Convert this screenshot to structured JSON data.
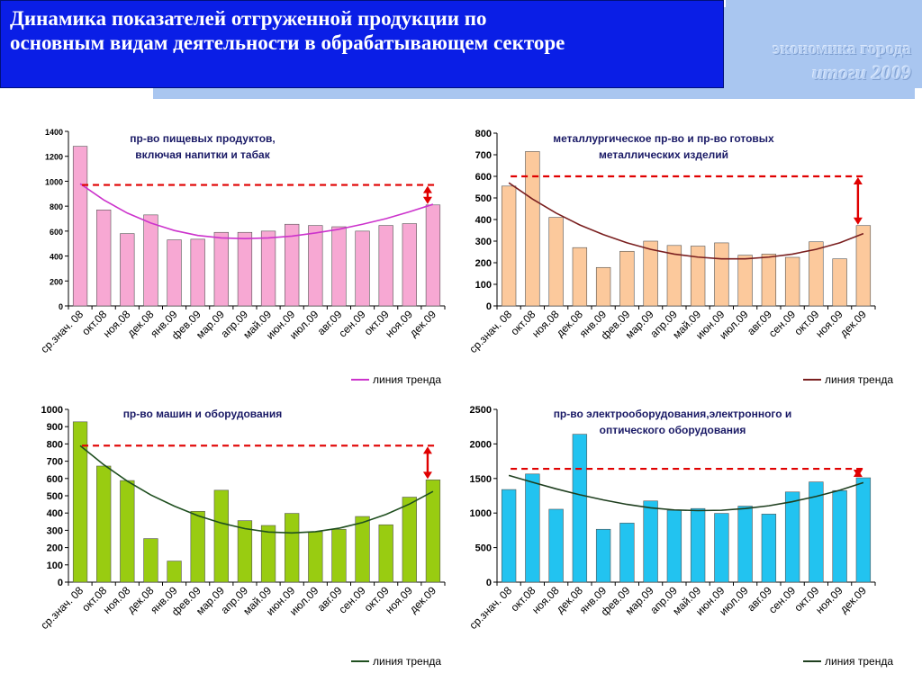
{
  "header": {
    "title_line1": "Динамика показателей отгруженной продукции по",
    "title_line2": "основным видам деятельности в обрабатывающем секторе",
    "logo_line1": "экономика города",
    "logo_line2": "итоги  2009"
  },
  "chart_data": [
    {
      "type": "bar",
      "title": "пр-во пищевых продуктов,\nвключая напитки и табак",
      "categories": [
        "ср.знач. 08",
        "окт.08",
        "ноя.08",
        "дек.08",
        "янв.09",
        "фев.09",
        "мар.09",
        "апр.09",
        "май.09",
        "июн.09",
        "июл.09",
        "авг.09",
        "сен.09",
        "окт.09",
        "ноя.09",
        "дек.09"
      ],
      "values": [
        1280,
        770,
        580,
        730,
        530,
        535,
        590,
        590,
        600,
        655,
        645,
        635,
        600,
        645,
        660,
        810
      ],
      "ylim": [
        0,
        1400
      ],
      "ticks": [
        0,
        200,
        400,
        600,
        800,
        1000,
        1200,
        1400
      ],
      "bar_color": "#f7a8d3",
      "trend_color": "#cc33cc",
      "trend_values": [
        980,
        850,
        745,
        665,
        605,
        565,
        545,
        540,
        545,
        560,
        585,
        615,
        655,
        700,
        755,
        815
      ],
      "dashed_level": 970,
      "legend": "линия тренда",
      "tick_weight": "bold"
    },
    {
      "type": "bar",
      "title": "металлургическое пр-во и пр-во готовых\nметаллических изделий",
      "categories": [
        "ср.знач. 08",
        "окт.08",
        "ноя.08",
        "дек.08",
        "янв.09",
        "фев.09",
        "мар.09",
        "апр.09",
        "май.09",
        "июн.09",
        "июл.09",
        "авг.09",
        "сен.09",
        "окт.09",
        "ноя.09",
        "дек.09"
      ],
      "values": [
        555,
        715,
        410,
        270,
        178,
        253,
        300,
        280,
        277,
        292,
        235,
        240,
        225,
        297,
        218,
        372
      ],
      "ylim": [
        0,
        800
      ],
      "ticks": [
        0,
        100,
        200,
        300,
        400,
        500,
        600,
        700,
        800
      ],
      "bar_color": "#fcc99c",
      "trend_color": "#7a1f1f",
      "trend_values": [
        570,
        495,
        430,
        375,
        330,
        292,
        262,
        240,
        226,
        218,
        218,
        226,
        240,
        262,
        292,
        335
      ],
      "dashed_level": 600,
      "legend": "линия тренда",
      "tick_weight": "bold"
    },
    {
      "type": "bar",
      "title": "пр-во машин и оборудования",
      "categories": [
        "ср.знач. 08",
        "окт.08",
        "ноя.08",
        "дек.08",
        "янв.09",
        "фев.09",
        "мар.09",
        "апр.09",
        "май.09",
        "июн.09",
        "июл.09",
        "авг.09",
        "сен.09",
        "окт.09",
        "ноя.09",
        "дек.09"
      ],
      "values": [
        928,
        672,
        588,
        252,
        122,
        410,
        532,
        356,
        328,
        398,
        292,
        306,
        380,
        332,
        492,
        592
      ],
      "ylim": [
        0,
        1000
      ],
      "ticks": [
        0,
        100,
        200,
        300,
        400,
        500,
        600,
        700,
        800,
        900,
        1000
      ],
      "bar_color": "#99cc11",
      "trend_color": "#1f4f1f",
      "trend_values": [
        790,
        680,
        585,
        505,
        440,
        385,
        342,
        310,
        290,
        285,
        292,
        312,
        345,
        392,
        452,
        525
      ],
      "dashed_level": 790,
      "legend": "линия тренда",
      "tick_weight": "bold"
    },
    {
      "type": "bar",
      "title": "пр-во электрооборудования,электронного и\nоптического оборудования",
      "categories": [
        "ср.знач. 08",
        "окт.08",
        "ноя.08",
        "дек.08",
        "янв.09",
        "фев.09",
        "мар.09",
        "апр.09",
        "май.09",
        "июн.09",
        "июл.09",
        "авг.09",
        "сен.09",
        "окт.09",
        "ноя.09",
        "дек.09"
      ],
      "values": [
        1340,
        1565,
        1055,
        2140,
        765,
        855,
        1175,
        1040,
        1065,
        995,
        1100,
        985,
        1305,
        1450,
        1325,
        1510
      ],
      "ylim": [
        0,
        2500
      ],
      "ticks": [
        0,
        500,
        1000,
        1500,
        2000,
        2500
      ],
      "bar_color": "#22c3f0",
      "trend_color": "#1f3f1f",
      "trend_values": [
        1545,
        1445,
        1350,
        1265,
        1190,
        1125,
        1075,
        1045,
        1035,
        1040,
        1065,
        1105,
        1165,
        1240,
        1330,
        1440
      ],
      "dashed_level": 1640,
      "legend": "линия тренда",
      "tick_weight": "bold"
    }
  ]
}
